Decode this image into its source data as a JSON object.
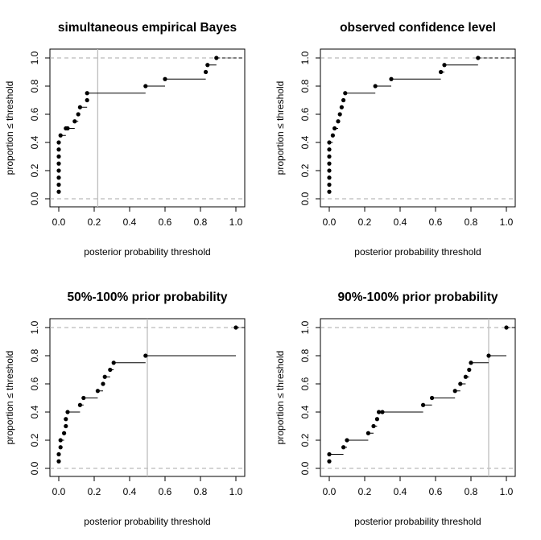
{
  "chart_data": [
    {
      "type": "step",
      "title": "simultaneous empirical Bayes",
      "xlabel": "posterior probability threshold",
      "ylabel": "proportion ≤ threshold",
      "xlim": [
        0,
        1
      ],
      "ylim": [
        0,
        1
      ],
      "xticks": [
        "0.0",
        "0.2",
        "0.4",
        "0.6",
        "0.8",
        "1.0"
      ],
      "yticks": [
        "0.0",
        "0.2",
        "0.4",
        "0.6",
        "0.8",
        "1.0"
      ],
      "hlines": [
        0,
        1
      ],
      "vline": 0.22,
      "x": [
        0,
        0,
        0,
        0,
        0,
        0,
        0,
        0,
        0.01,
        0.04,
        0.05,
        0.09,
        0.11,
        0.12,
        0.16,
        0.16,
        0.49,
        0.6,
        0.83,
        0.84,
        0.89
      ],
      "y": [
        0.05,
        0.1,
        0.15,
        0.2,
        0.25,
        0.3,
        0.35,
        0.4,
        0.45,
        0.5,
        0.5,
        0.55,
        0.6,
        0.65,
        0.7,
        0.75,
        0.8,
        0.85,
        0.9,
        0.95,
        1.0
      ]
    },
    {
      "type": "step",
      "title": "observed confidence level",
      "xlabel": "posterior probability threshold",
      "ylabel": "proportion ≤ threshold",
      "xlim": [
        0,
        1
      ],
      "ylim": [
        0,
        1
      ],
      "xticks": [
        "0.0",
        "0.2",
        "0.4",
        "0.6",
        "0.8",
        "1.0"
      ],
      "yticks": [
        "0.0",
        "0.2",
        "0.4",
        "0.6",
        "0.8",
        "1.0"
      ],
      "hlines": [
        0,
        1
      ],
      "vline": null,
      "x": [
        0,
        0,
        0,
        0,
        0,
        0,
        0,
        0,
        0.02,
        0.03,
        0.05,
        0.06,
        0.07,
        0.08,
        0.09,
        0.26,
        0.35,
        0.63,
        0.65,
        0.84
      ],
      "y": [
        0.05,
        0.1,
        0.15,
        0.2,
        0.25,
        0.3,
        0.35,
        0.4,
        0.45,
        0.5,
        0.55,
        0.6,
        0.65,
        0.7,
        0.75,
        0.8,
        0.85,
        0.9,
        0.95,
        1.0
      ]
    },
    {
      "type": "step",
      "title": "50%-100% prior probability",
      "xlabel": "posterior probability threshold",
      "ylabel": "proportion ≤ threshold",
      "xlim": [
        0,
        1
      ],
      "ylim": [
        0,
        1
      ],
      "xticks": [
        "0.0",
        "0.2",
        "0.4",
        "0.6",
        "0.8",
        "1.0"
      ],
      "yticks": [
        "0.0",
        "0.2",
        "0.4",
        "0.6",
        "0.8",
        "1.0"
      ],
      "hlines": [
        0,
        1
      ],
      "vline": 0.5,
      "x": [
        0,
        0,
        0.01,
        0.01,
        0.03,
        0.04,
        0.04,
        0.05,
        0.12,
        0.14,
        0.22,
        0.25,
        0.26,
        0.29,
        0.31,
        0.49,
        1.0
      ],
      "y": [
        0.05,
        0.1,
        0.15,
        0.2,
        0.25,
        0.3,
        0.35,
        0.4,
        0.45,
        0.5,
        0.55,
        0.6,
        0.65,
        0.7,
        0.75,
        0.8,
        1.0
      ]
    },
    {
      "type": "step",
      "title": "90%-100% prior probability",
      "xlabel": "posterior probability threshold",
      "ylabel": "proportion ≤ threshold",
      "xlim": [
        0,
        1
      ],
      "ylim": [
        0,
        1
      ],
      "xticks": [
        "0.0",
        "0.2",
        "0.4",
        "0.6",
        "0.8",
        "1.0"
      ],
      "yticks": [
        "0.0",
        "0.2",
        "0.4",
        "0.6",
        "0.8",
        "1.0"
      ],
      "hlines": [
        0,
        1
      ],
      "vline": 0.9,
      "x": [
        0,
        0,
        0.08,
        0.1,
        0.22,
        0.25,
        0.27,
        0.28,
        0.3,
        0.53,
        0.58,
        0.71,
        0.74,
        0.77,
        0.79,
        0.8,
        0.9,
        1.0
      ],
      "y": [
        0.05,
        0.1,
        0.15,
        0.2,
        0.25,
        0.3,
        0.35,
        0.4,
        0.4,
        0.45,
        0.5,
        0.55,
        0.6,
        0.65,
        0.7,
        0.75,
        0.8,
        1.0
      ]
    }
  ]
}
